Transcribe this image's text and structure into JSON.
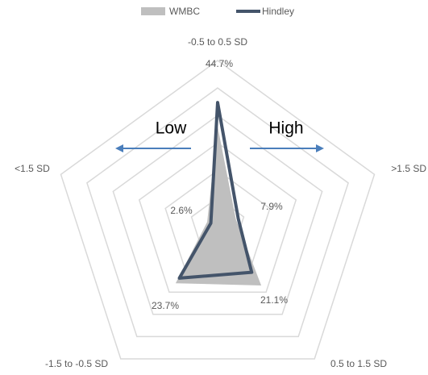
{
  "chart_data": {
    "type": "radar",
    "categories": [
      "-0.5 to 0.5 SD",
      ">1.5 SD",
      "0.5 to 1.5 SD",
      "-1.5 to -0.5 SD",
      "<1.5 SD"
    ],
    "series": [
      {
        "name": "WMBC",
        "color": "#bfbfbf",
        "values": [
          36,
          7,
          27,
          26,
          4
        ]
      },
      {
        "name": "Hindley",
        "color": "#44546a",
        "values": [
          44.7,
          7.9,
          21.1,
          23.7,
          2.6
        ],
        "value_labels": [
          "44.7%",
          "7.9%",
          "21.1%",
          "23.7%",
          "2.6%"
        ]
      }
    ],
    "ylim": [
      0,
      60
    ],
    "yticks": [
      0,
      10,
      20,
      30,
      40,
      50,
      60
    ],
    "grid": true,
    "legend": "top",
    "annotations": [
      {
        "text": "Low",
        "direction": "left",
        "color": "#4a7ebb"
      },
      {
        "text": "High",
        "direction": "right",
        "color": "#4a7ebb"
      }
    ]
  }
}
